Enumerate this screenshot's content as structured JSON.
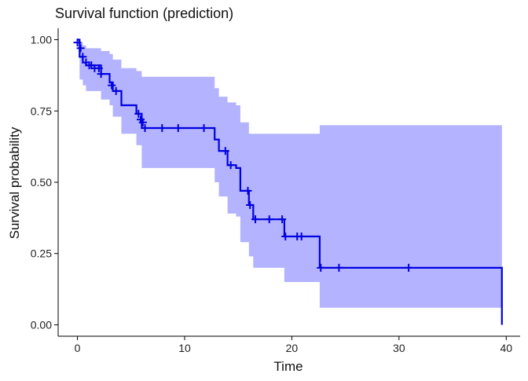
{
  "chart_data": {
    "type": "line",
    "title": "Survival function (prediction)",
    "xlabel": "Time",
    "ylabel": "Survival probability",
    "xlim": [
      -1.8,
      41.3
    ],
    "ylim": [
      -0.04,
      1.04
    ],
    "x_ticks": [
      0,
      10,
      20,
      30,
      40
    ],
    "y_ticks": [
      0.0,
      0.25,
      0.5,
      0.75,
      1.0
    ],
    "x_tick_labels": [
      "0",
      "10",
      "20",
      "30",
      "40"
    ],
    "y_tick_labels": [
      "0.00",
      "0.25",
      "0.50",
      "0.75",
      "1.00"
    ],
    "grid": false,
    "legend": "none",
    "colors": {
      "line": "#0000e0",
      "band": "#b3b3ff",
      "axis": "#000000"
    },
    "series": [
      {
        "kind": "step",
        "x": [
          0,
          0.2,
          0.5,
          0.8,
          2.2,
          3.0,
          3.3,
          4.1,
          5.5,
          6.0,
          12.8,
          13.2,
          14.0,
          14.8,
          15.2,
          16.0,
          16.4,
          19.3,
          22.6,
          39.6
        ],
        "y": [
          1.0,
          0.94,
          0.92,
          0.91,
          0.88,
          0.85,
          0.82,
          0.77,
          0.74,
          0.69,
          0.65,
          0.61,
          0.56,
          0.55,
          0.47,
          0.42,
          0.37,
          0.31,
          0.2,
          0.0
        ],
        "lower": [
          1.0,
          0.86,
          0.84,
          0.82,
          0.79,
          0.77,
          0.73,
          0.67,
          0.63,
          0.55,
          0.5,
          0.45,
          0.39,
          0.38,
          0.29,
          0.24,
          0.2,
          0.15,
          0.06,
          0.06
        ],
        "upper": [
          1.0,
          0.99,
          0.98,
          0.97,
          0.96,
          0.95,
          0.93,
          0.9,
          0.89,
          0.87,
          0.83,
          0.8,
          0.78,
          0.77,
          0.71,
          0.67,
          0.67,
          0.67,
          0.7,
          0.7
        ]
      }
    ],
    "censor_marks": {
      "x": [
        0.0,
        0.3,
        0.5,
        0.8,
        1.1,
        1.3,
        1.6,
        2.0,
        2.2,
        3.2,
        3.6,
        5.7,
        5.9,
        6.1,
        6.3,
        7.9,
        9.4,
        11.8,
        13.8,
        14.3,
        15.9,
        16.1,
        16.6,
        17.9,
        19.1,
        19.4,
        20.5,
        20.9,
        22.7,
        24.4,
        30.9
      ],
      "y": [
        0.99,
        0.97,
        0.94,
        0.92,
        0.91,
        0.91,
        0.9,
        0.9,
        0.88,
        0.84,
        0.82,
        0.74,
        0.72,
        0.71,
        0.69,
        0.69,
        0.69,
        0.69,
        0.61,
        0.56,
        0.47,
        0.42,
        0.37,
        0.37,
        0.37,
        0.31,
        0.31,
        0.31,
        0.2,
        0.2,
        0.2
      ]
    }
  }
}
